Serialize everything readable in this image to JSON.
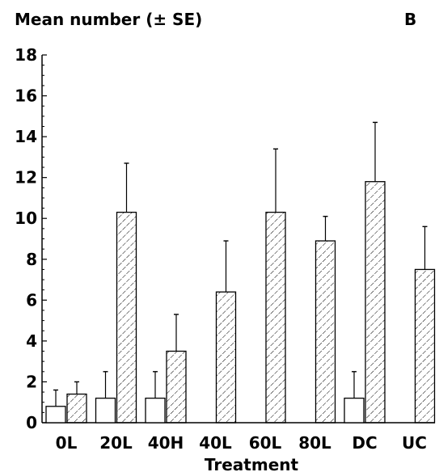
{
  "chart_data": {
    "type": "bar",
    "title": "Mean number (± SE)",
    "panel_label": "B",
    "xlabel": "Treatment",
    "ylabel": "",
    "ylim": [
      0,
      18
    ],
    "yticks": [
      "0",
      "2",
      "4",
      "6",
      "8",
      "10",
      "12",
      "14",
      "16",
      "18"
    ],
    "categories": [
      "0L",
      "20L",
      "40H",
      "40L",
      "60L",
      "80L",
      "DC",
      "UC"
    ],
    "series": [
      {
        "style": "open",
        "values": [
          0.8,
          1.2,
          1.2,
          null,
          null,
          null,
          1.2,
          null
        ],
        "se": [
          0.8,
          1.3,
          1.3,
          null,
          null,
          null,
          1.3,
          null
        ]
      },
      {
        "style": "hatched",
        "values": [
          1.4,
          10.3,
          3.5,
          6.4,
          10.3,
          8.9,
          11.8,
          7.5
        ],
        "se": [
          0.6,
          2.4,
          1.8,
          2.5,
          3.1,
          1.2,
          2.9,
          2.1
        ]
      }
    ],
    "grid": false,
    "legend": "none"
  }
}
